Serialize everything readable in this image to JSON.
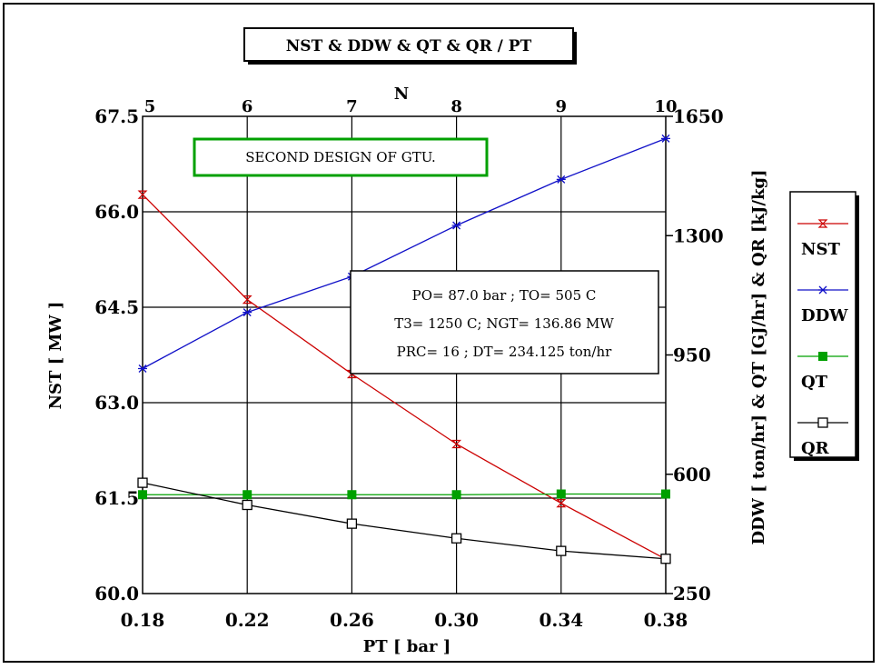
{
  "chart_data": {
    "type": "line",
    "title": "NST & DDW & QT & QR / PT",
    "xlabel": "PT [ bar ]",
    "top_xlabel": "N",
    "ylabel_left": "NST [ MW ]",
    "ylabel_right": "DDW [ ton/hr] & QT [GJ/hr] & QR [kJ/kg]",
    "x": [
      0.18,
      0.22,
      0.26,
      0.3,
      0.34,
      0.38
    ],
    "x_tick_labels": [
      "0.18",
      "0.22",
      "0.26",
      "0.30",
      "0.34",
      "0.38"
    ],
    "top_tick_labels": [
      "5",
      "6",
      "7",
      "8",
      "9",
      "10"
    ],
    "xlim": [
      0.18,
      0.38
    ],
    "ylim_left": [
      60.0,
      67.5
    ],
    "left_tick_values": [
      60.0,
      61.5,
      63.0,
      64.5,
      66.0,
      67.5
    ],
    "left_tick_labels": [
      "60.0",
      "61.5",
      "63.0",
      "64.5",
      "66.0",
      "67.5"
    ],
    "ylim_right": [
      250,
      1650
    ],
    "right_tick_values": [
      250,
      600,
      950,
      1300,
      1650
    ],
    "right_tick_labels": [
      "250",
      "600",
      "950",
      "1300",
      "1650"
    ],
    "grid": true,
    "legend_position": "right",
    "series": [
      {
        "name": "NST",
        "axis": "left",
        "color": "#cc0000",
        "marker": "hourglass",
        "values": [
          66.27,
          64.62,
          63.45,
          62.35,
          61.42,
          60.54
        ]
      },
      {
        "name": "DDW",
        "axis": "right",
        "color": "#1010c8",
        "marker": "star",
        "values": [
          910,
          1075,
          1180,
          1330,
          1465,
          1585
        ]
      },
      {
        "name": "QT",
        "axis": "right",
        "color": "#00a000",
        "marker": "filled-square",
        "values": [
          540,
          540,
          540,
          540,
          542,
          542
        ]
      },
      {
        "name": "QR",
        "axis": "right",
        "color": "#000000",
        "marker": "open-square",
        "values": [
          575,
          510,
          455,
          412,
          375,
          352
        ]
      }
    ],
    "annotations": {
      "design": "SECOND DESIGN OF GTU.",
      "params": [
        "PO= 87.0 bar ; TO= 505 C",
        "T3= 1250 C; NGT= 136.86 MW",
        "PRC= 16 ; DT= 234.125 ton/hr"
      ]
    }
  }
}
